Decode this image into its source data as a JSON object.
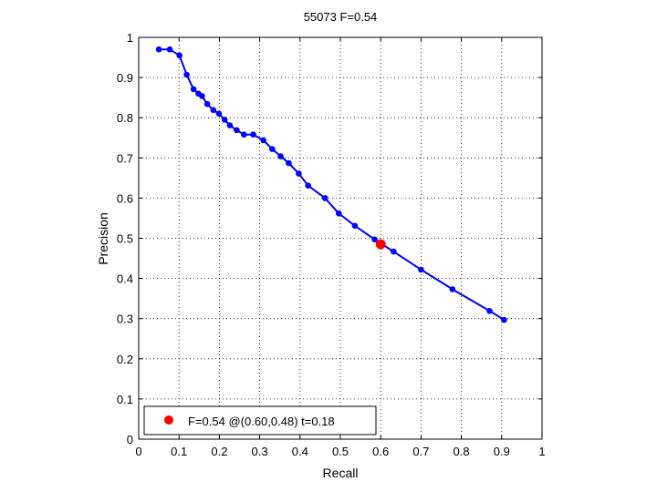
{
  "chart_data": {
    "type": "line",
    "title": "55073 F=0.54",
    "xlabel": "Recall",
    "ylabel": "Precision",
    "xlim": [
      0,
      1
    ],
    "ylim": [
      0,
      1
    ],
    "grid": true,
    "xticks": [
      0,
      0.1,
      0.2,
      0.3,
      0.4,
      0.5,
      0.6,
      0.7,
      0.8,
      0.9,
      1
    ],
    "yticks": [
      0,
      0.1,
      0.2,
      0.3,
      0.4,
      0.5,
      0.6,
      0.7,
      0.8,
      0.9,
      1
    ],
    "xtick_labels": [
      "0",
      "0.1",
      "0.2",
      "0.3",
      "0.4",
      "0.5",
      "0.6",
      "0.7",
      "0.8",
      "0.9",
      "1"
    ],
    "ytick_labels": [
      "0",
      "0.1",
      "0.2",
      "0.3",
      "0.4",
      "0.5",
      "0.6",
      "0.7",
      "0.8",
      "0.9",
      "1"
    ],
    "series": [
      {
        "color": "#0000ff",
        "x": [
          0.05,
          0.077,
          0.101,
          0.119,
          0.136,
          0.148,
          0.157,
          0.17,
          0.185,
          0.199,
          0.213,
          0.226,
          0.243,
          0.261,
          0.284,
          0.309,
          0.331,
          0.352,
          0.372,
          0.397,
          0.42,
          0.462,
          0.496,
          0.536,
          0.585,
          0.602,
          0.632,
          0.7,
          0.778,
          0.87,
          0.906
        ],
        "y": [
          0.97,
          0.97,
          0.955,
          0.907,
          0.871,
          0.86,
          0.854,
          0.834,
          0.819,
          0.81,
          0.795,
          0.781,
          0.769,
          0.758,
          0.758,
          0.744,
          0.722,
          0.704,
          0.687,
          0.661,
          0.631,
          0.6,
          0.562,
          0.531,
          0.497,
          0.486,
          0.467,
          0.422,
          0.373,
          0.319,
          0.297
        ]
      }
    ],
    "highlight": {
      "color": "#ff0000",
      "x": 0.6,
      "y": 0.485
    },
    "legend": {
      "position": "bottom-left",
      "text": "F=0.54 @(0.60,0.48) t=0.18"
    }
  }
}
